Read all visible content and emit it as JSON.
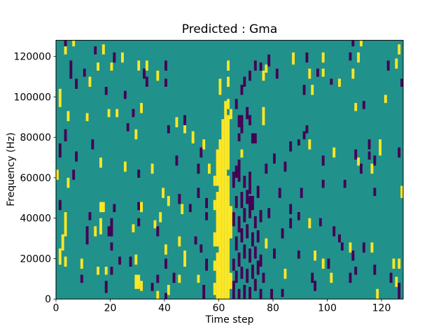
{
  "figure": {
    "title": "Predicted : Gma",
    "xlabel": "Time step",
    "ylabel": "Frequency (Hz)"
  },
  "chart_data": {
    "type": "heatmap",
    "title": "Predicted : Gma",
    "xlabel": "Time step",
    "ylabel": "Frequency (Hz)",
    "x_range": [
      0,
      128
    ],
    "y_range": [
      0,
      128000
    ],
    "x_ticks": [
      0,
      20,
      40,
      60,
      80,
      100,
      120
    ],
    "y_ticks": [
      0,
      20000,
      40000,
      60000,
      80000,
      100000,
      120000
    ],
    "grid": {
      "cols": 128,
      "rows": 128
    },
    "colormap": "viridis",
    "colors": [
      "#440154",
      "#21918c",
      "#fde725"
    ],
    "background_value": 1,
    "legend": "none",
    "notes": "cells = [col, rowBottom, rowTop, value(0=purple,2=yellow), optional colSpan]; rows counted from bottom (freq bins of 1000 Hz). Yellow band at cols 58-64, purple cluster cols 65-75.",
    "cells": [
      [
        3,
        125,
        127,
        0
      ],
      [
        6,
        125,
        127,
        2
      ],
      [
        3,
        121,
        124,
        2
      ],
      [
        14,
        121,
        124,
        0
      ],
      [
        17,
        121,
        125,
        2
      ],
      [
        109,
        125,
        127,
        0
      ],
      [
        112,
        125,
        127,
        2
      ],
      [
        126,
        121,
        125,
        2
      ],
      [
        21,
        117,
        121,
        0
      ],
      [
        24,
        117,
        121,
        2
      ],
      [
        87,
        116,
        121,
        2
      ],
      [
        92,
        117,
        121,
        0
      ],
      [
        98,
        117,
        121,
        2
      ],
      [
        108,
        118,
        121,
        0
      ],
      [
        111,
        117,
        121,
        2
      ],
      [
        78,
        115,
        120,
        0
      ],
      [
        5,
        109,
        117,
        0
      ],
      [
        10,
        110,
        113,
        0
      ],
      [
        15,
        113,
        116,
        2
      ],
      [
        20,
        113,
        116,
        2
      ],
      [
        30,
        113,
        117,
        2
      ],
      [
        33,
        113,
        117,
        2
      ],
      [
        40,
        113,
        117,
        0
      ],
      [
        63,
        113,
        117,
        2
      ],
      [
        73,
        113,
        117,
        0
      ],
      [
        75,
        113,
        116,
        0
      ],
      [
        77,
        112,
        115,
        2
      ],
      [
        122,
        113,
        117,
        0
      ],
      [
        125,
        114,
        118,
        2
      ],
      [
        7,
        104,
        108,
        0
      ],
      [
        12,
        105,
        109,
        2
      ],
      [
        18,
        101,
        104,
        0
      ],
      [
        32,
        109,
        113,
        0
      ],
      [
        33,
        105,
        109,
        0
      ],
      [
        37,
        108,
        112,
        2
      ],
      [
        40,
        105,
        108,
        0
      ],
      [
        60,
        101,
        108,
        2
      ],
      [
        63,
        105,
        109,
        2
      ],
      [
        69,
        105,
        109,
        0
      ],
      [
        71,
        108,
        112,
        0
      ],
      [
        76,
        108,
        112,
        2
      ],
      [
        81,
        109,
        113,
        0
      ],
      [
        93,
        109,
        113,
        2
      ],
      [
        96,
        110,
        113,
        0
      ],
      [
        98,
        110,
        113,
        2
      ],
      [
        109,
        109,
        113,
        2
      ],
      [
        101,
        106,
        108,
        0
      ],
      [
        104,
        105,
        108,
        2
      ],
      [
        127,
        105,
        108,
        0
      ],
      [
        1,
        95,
        103,
        2
      ],
      [
        25,
        99,
        102,
        0
      ],
      [
        68,
        101,
        105,
        0
      ],
      [
        91,
        101,
        105,
        0
      ],
      [
        94,
        101,
        105,
        2
      ],
      [
        121,
        97,
        100,
        2
      ],
      [
        4,
        88,
        92,
        2
      ],
      [
        11,
        88,
        91,
        2
      ],
      [
        19,
        90,
        93,
        2
      ],
      [
        22,
        90,
        93,
        2
      ],
      [
        28,
        90,
        93,
        0
      ],
      [
        31,
        92,
        96,
        2
      ],
      [
        44,
        85,
        89,
        2
      ],
      [
        47,
        86,
        90,
        0
      ],
      [
        66,
        94,
        98,
        0
      ],
      [
        64,
        89,
        93,
        2
      ],
      [
        70,
        89,
        94,
        0
      ],
      [
        71,
        86,
        90,
        0
      ],
      [
        76,
        86,
        94,
        2
      ],
      [
        67,
        85,
        90,
        0,
        2
      ],
      [
        110,
        93,
        96,
        2
      ],
      [
        113,
        94,
        97,
        0
      ],
      [
        3,
        78,
        83,
        0
      ],
      [
        26,
        83,
        86,
        0
      ],
      [
        29,
        79,
        83,
        2
      ],
      [
        41,
        82,
        85,
        0
      ],
      [
        47,
        82,
        85,
        2
      ],
      [
        50,
        78,
        82,
        2
      ],
      [
        68,
        82,
        85,
        0
      ],
      [
        67,
        78,
        81,
        0
      ],
      [
        72,
        77,
        81,
        0,
        2
      ],
      [
        92,
        82,
        85,
        0
      ],
      [
        91,
        79,
        82,
        0
      ],
      [
        1,
        70,
        76,
        0
      ],
      [
        13,
        74,
        78,
        0
      ],
      [
        16,
        65,
        69,
        2
      ],
      [
        25,
        63,
        67,
        2
      ],
      [
        7,
        68,
        72,
        0
      ],
      [
        93,
        74,
        78,
        2
      ],
      [
        115,
        74,
        78,
        0
      ],
      [
        119,
        71,
        78,
        2
      ],
      [
        102,
        70,
        74,
        2
      ],
      [
        110,
        69,
        73,
        0
      ],
      [
        126,
        70,
        74,
        0
      ],
      [
        98,
        66,
        70,
        0
      ],
      [
        111,
        66,
        69,
        2
      ],
      [
        112,
        62,
        66,
        0
      ],
      [
        116,
        62,
        66,
        2
      ],
      [
        117,
        66,
        70,
        0
      ],
      [
        50,
        77,
        78,
        2
      ],
      [
        54,
        74,
        78,
        2
      ],
      [
        53,
        70,
        74,
        0
      ],
      [
        44,
        66,
        70,
        0
      ],
      [
        52,
        62,
        66,
        0
      ],
      [
        56,
        62,
        66,
        2
      ],
      [
        35,
        62,
        66,
        2
      ],
      [
        0,
        59,
        63,
        2
      ],
      [
        6,
        59,
        63,
        0
      ],
      [
        4,
        55,
        59,
        2
      ],
      [
        30,
        60,
        63,
        0
      ],
      [
        89,
        76,
        78,
        0
      ],
      [
        86,
        73,
        77,
        0
      ],
      [
        115,
        69,
        72,
        0
      ],
      [
        98,
        55,
        58,
        0
      ],
      [
        106,
        55,
        58,
        0
      ],
      [
        90,
        50,
        54,
        0
      ],
      [
        117,
        51,
        54,
        0
      ],
      [
        127,
        50,
        55,
        2
      ],
      [
        39,
        50,
        54,
        2
      ],
      [
        52,
        50,
        54,
        0
      ],
      [
        82,
        50,
        54,
        0
      ],
      [
        80,
        67,
        71,
        0
      ],
      [
        84,
        63,
        67,
        0
      ],
      [
        77,
        62,
        66,
        0
      ],
      [
        1,
        44,
        48,
        0
      ],
      [
        16,
        43,
        47,
        2,
        2
      ],
      [
        21,
        43,
        46,
        0
      ],
      [
        12,
        39,
        42,
        0
      ],
      [
        3,
        31,
        42,
        2
      ],
      [
        16,
        32,
        39,
        2
      ],
      [
        20,
        35,
        39,
        0
      ],
      [
        11,
        27,
        35,
        0
      ],
      [
        14,
        31,
        35,
        2
      ],
      [
        19,
        31,
        35,
        0,
        2
      ],
      [
        2,
        24,
        31,
        2
      ],
      [
        30,
        44,
        47,
        0
      ],
      [
        31,
        44,
        47,
        2
      ],
      [
        30,
        36,
        39,
        0
      ],
      [
        28,
        33,
        36,
        2
      ],
      [
        41,
        46,
        50,
        2
      ],
      [
        45,
        47,
        51,
        0
      ],
      [
        55,
        45,
        49,
        0
      ],
      [
        31,
        43,
        47,
        2
      ],
      [
        46,
        42,
        46,
        2
      ],
      [
        49,
        43,
        46,
        0
      ],
      [
        55,
        39,
        42,
        0
      ],
      [
        38,
        38,
        42,
        2
      ],
      [
        36,
        35,
        38,
        2
      ],
      [
        37,
        31,
        35,
        0
      ],
      [
        86,
        42,
        46,
        0
      ],
      [
        89,
        39,
        42,
        0
      ],
      [
        86,
        35,
        39,
        0
      ],
      [
        93,
        35,
        39,
        2
      ],
      [
        97,
        36,
        39,
        0
      ],
      [
        102,
        31,
        35,
        0
      ],
      [
        78,
        40,
        44,
        0
      ],
      [
        83,
        30,
        34,
        0
      ],
      [
        20,
        24,
        27,
        0
      ],
      [
        1,
        17,
        24,
        2
      ],
      [
        3,
        16,
        20,
        2
      ],
      [
        9,
        15,
        19,
        2
      ],
      [
        23,
        17,
        20,
        0
      ],
      [
        27,
        16,
        20,
        0
      ],
      [
        29,
        17,
        21,
        2
      ],
      [
        15,
        12,
        15,
        2
      ],
      [
        18,
        12,
        15,
        2
      ],
      [
        20,
        12,
        15,
        0
      ],
      [
        9,
        8,
        11,
        0
      ],
      [
        29,
        5,
        11,
        2,
        2
      ],
      [
        18,
        3,
        8,
        0
      ],
      [
        31,
        4,
        8,
        2
      ],
      [
        45,
        26,
        30,
        2
      ],
      [
        51,
        27,
        30,
        0
      ],
      [
        40,
        22,
        26,
        2
      ],
      [
        53,
        23,
        26,
        0
      ],
      [
        47,
        16,
        23,
        2
      ],
      [
        40,
        15,
        19,
        0
      ],
      [
        55,
        14,
        19,
        0
      ],
      [
        37,
        8,
        11,
        0
      ],
      [
        43,
        8,
        12,
        0
      ],
      [
        45,
        8,
        11,
        2
      ],
      [
        52,
        8,
        11,
        2
      ],
      [
        35,
        4,
        7,
        0
      ],
      [
        41,
        2,
        6,
        2
      ],
      [
        37,
        0,
        3,
        2
      ],
      [
        40,
        0,
        2,
        0
      ],
      [
        54,
        0,
        6,
        0
      ],
      [
        104,
        28,
        31,
        0
      ],
      [
        105,
        24,
        27,
        0
      ],
      [
        108,
        23,
        27,
        2
      ],
      [
        113,
        23,
        27,
        0
      ],
      [
        116,
        23,
        27,
        2
      ],
      [
        109,
        19,
        23,
        0
      ],
      [
        89,
        20,
        23,
        0
      ],
      [
        95,
        19,
        23,
        2
      ],
      [
        98,
        15,
        19,
        2
      ],
      [
        100,
        15,
        19,
        0
      ],
      [
        110,
        12,
        15,
        0
      ],
      [
        117,
        12,
        16,
        0
      ],
      [
        124,
        15,
        19,
        2
      ],
      [
        126,
        15,
        19,
        2
      ],
      [
        94,
        8,
        12,
        0
      ],
      [
        101,
        8,
        12,
        2
      ],
      [
        108,
        8,
        12,
        0
      ],
      [
        123,
        8,
        12,
        0
      ],
      [
        125,
        6,
        10,
        2
      ],
      [
        95,
        4,
        8,
        0
      ],
      [
        118,
        0,
        4,
        2
      ],
      [
        126,
        0,
        7,
        0
      ],
      [
        80,
        20,
        24,
        0
      ],
      [
        76,
        8,
        12,
        0
      ],
      [
        79,
        0,
        4,
        0
      ],
      [
        83,
        1,
        4,
        0
      ],
      [
        84,
        10,
        14,
        2
      ],
      [
        77,
        25,
        29,
        2
      ],
      [
        58,
        2,
        7,
        2
      ],
      [
        58,
        14,
        18,
        2
      ],
      [
        58,
        26,
        32,
        2
      ],
      [
        58,
        44,
        48,
        2
      ],
      [
        58,
        56,
        60,
        2
      ],
      [
        59,
        0,
        22,
        2
      ],
      [
        59,
        26,
        52,
        2
      ],
      [
        59,
        56,
        73,
        2
      ],
      [
        60,
        0,
        78,
        2
      ],
      [
        61,
        0,
        88,
        2
      ],
      [
        62,
        0,
        97,
        2
      ],
      [
        63,
        0,
        60,
        2
      ],
      [
        63,
        64,
        90,
        2
      ],
      [
        63,
        94,
        98,
        2
      ],
      [
        64,
        5,
        12,
        2
      ],
      [
        64,
        30,
        45,
        2
      ],
      [
        65,
        0,
        8,
        0
      ],
      [
        65,
        14,
        19,
        0
      ],
      [
        65,
        36,
        42,
        0
      ],
      [
        65,
        55,
        62,
        0
      ],
      [
        66,
        8,
        13,
        0
      ],
      [
        66,
        24,
        30,
        0
      ],
      [
        66,
        45,
        50,
        0
      ],
      [
        66,
        60,
        65,
        0
      ],
      [
        67,
        0,
        4,
        0
      ],
      [
        67,
        16,
        22,
        0
      ],
      [
        67,
        33,
        40,
        0
      ],
      [
        67,
        58,
        68,
        0
      ],
      [
        68,
        10,
        15,
        0
      ],
      [
        68,
        28,
        34,
        0
      ],
      [
        68,
        45,
        52,
        0
      ],
      [
        68,
        70,
        73,
        2
      ],
      [
        69,
        0,
        6,
        0
      ],
      [
        69,
        20,
        26,
        0
      ],
      [
        69,
        38,
        44,
        0
      ],
      [
        69,
        55,
        60,
        0
      ],
      [
        70,
        8,
        14,
        0
      ],
      [
        70,
        30,
        36,
        0
      ],
      [
        70,
        47,
        53,
        0
      ],
      [
        71,
        0,
        5,
        0
      ],
      [
        71,
        18,
        24,
        0
      ],
      [
        71,
        40,
        50,
        0
      ],
      [
        71,
        52,
        62,
        0
      ],
      [
        72,
        10,
        16,
        0
      ],
      [
        72,
        26,
        32,
        0
      ],
      [
        72,
        44,
        50,
        0
      ],
      [
        73,
        4,
        9,
        0
      ],
      [
        73,
        20,
        25,
        0
      ],
      [
        73,
        35,
        40,
        0
      ],
      [
        74,
        12,
        18,
        0
      ],
      [
        74,
        28,
        33,
        0
      ],
      [
        74,
        50,
        55,
        0
      ],
      [
        75,
        0,
        4,
        0
      ],
      [
        75,
        16,
        21,
        0
      ],
      [
        75,
        38,
        43,
        0
      ]
    ]
  }
}
